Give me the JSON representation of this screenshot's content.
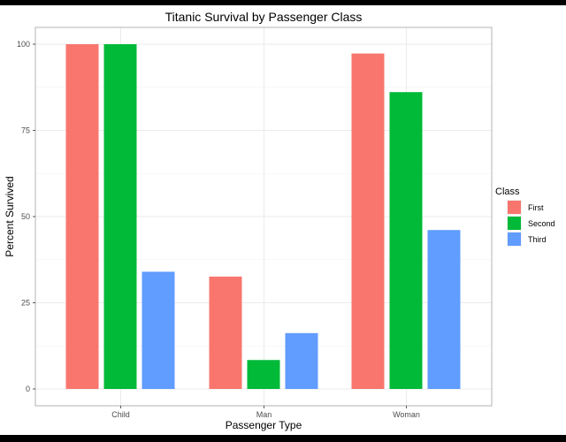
{
  "chart_data": {
    "type": "bar",
    "title": "Titanic Survival by Passenger Class",
    "xlabel": "Passenger Type",
    "ylabel": "Percent Survived",
    "categories": [
      "Child",
      "Man",
      "Woman"
    ],
    "series": [
      {
        "name": "First",
        "color": "#F8766D",
        "values": [
          100,
          32.6,
          97.3
        ]
      },
      {
        "name": "Second",
        "color": "#00BA38",
        "values": [
          100,
          8.4,
          86.1
        ]
      },
      {
        "name": "Third",
        "color": "#619CFF",
        "values": [
          34,
          16.2,
          46.1
        ]
      }
    ],
    "ylim": [
      -5,
      105
    ],
    "yticks": [
      0,
      25,
      50,
      75,
      100
    ],
    "grid": true,
    "legend": {
      "title": "Class",
      "position": "right"
    }
  }
}
